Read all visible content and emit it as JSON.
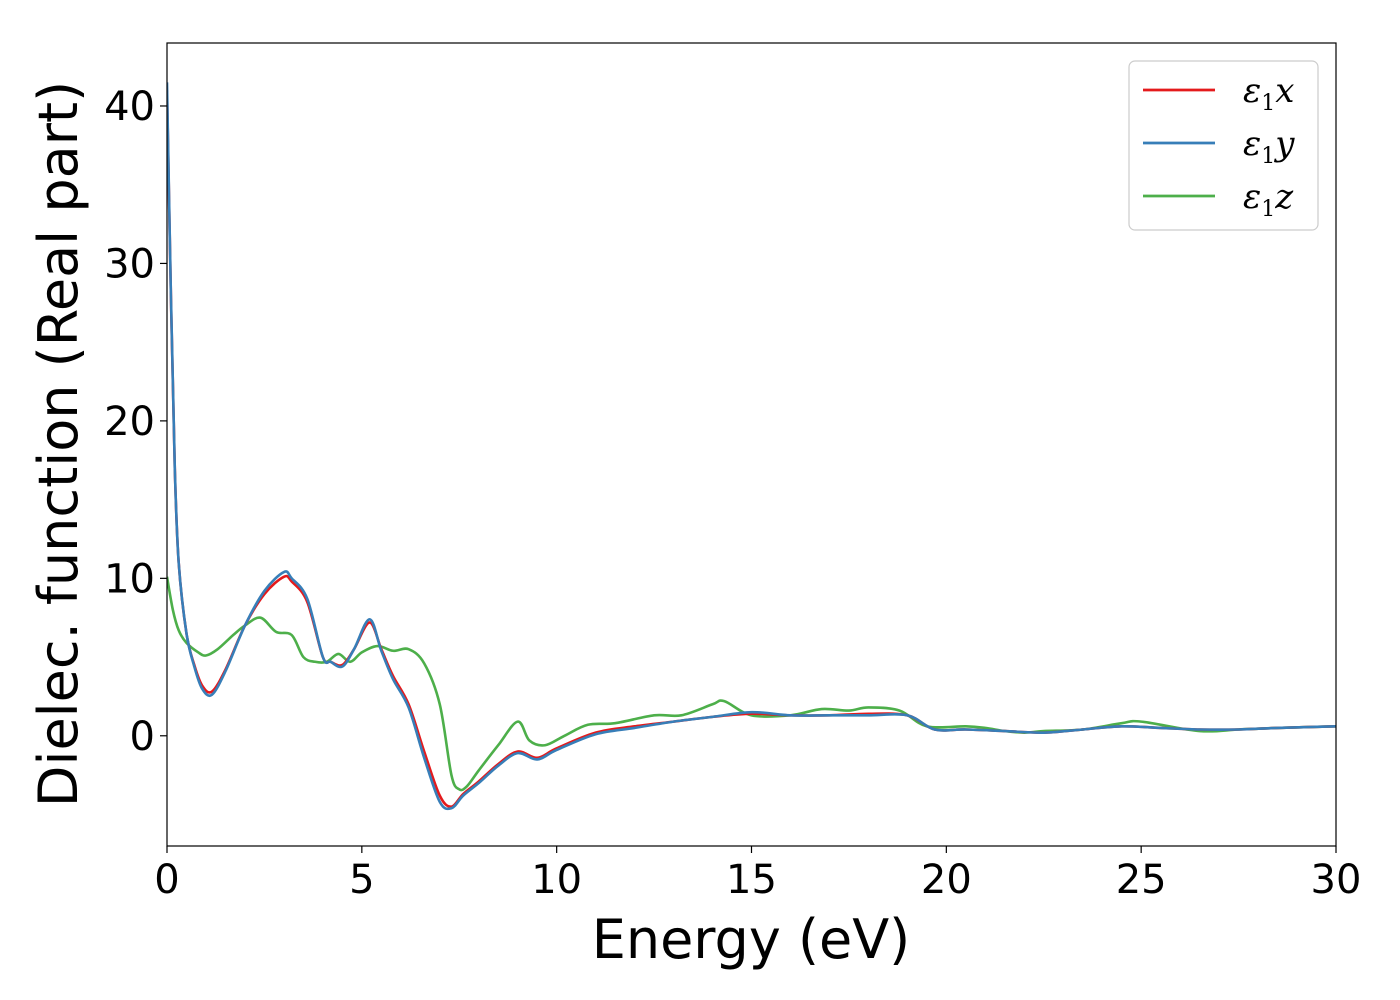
{
  "chart_data": {
    "type": "line",
    "title": "",
    "xlabel": "Energy (eV)",
    "ylabel": "Dielec. function (Real part)",
    "xlim": [
      0,
      30
    ],
    "ylim": [
      -7,
      44
    ],
    "xticks": [
      0,
      5,
      10,
      15,
      20,
      25,
      30
    ],
    "yticks": [
      0,
      10,
      20,
      30,
      40
    ],
    "grid": false,
    "legend_position": "top-right",
    "series": [
      {
        "name": "ε1x",
        "name_base": "ε",
        "name_sub": "1",
        "name_suffix": "x",
        "color": "#e41a1c",
        "x": [
          0,
          0.1,
          0.2,
          0.3,
          0.5,
          0.7,
          0.9,
          1.15,
          1.5,
          2.0,
          2.5,
          3.0,
          3.2,
          3.6,
          4.0,
          4.2,
          4.5,
          4.8,
          5.2,
          5.5,
          5.8,
          6.2,
          6.6,
          7.0,
          7.3,
          7.6,
          8.0,
          8.5,
          9.0,
          9.5,
          10.0,
          11.0,
          12.0,
          13.0,
          14.0,
          15.0,
          16.0,
          17.0,
          18.0,
          19.0,
          19.7,
          20.5,
          21.5,
          22.5,
          23.5,
          24.5,
          25.5,
          26.5,
          27.5,
          28.5,
          30.0
        ],
        "y": [
          41,
          28,
          17,
          11,
          6.5,
          4.5,
          3.2,
          2.8,
          4.2,
          7.0,
          9.0,
          10.1,
          9.8,
          8.5,
          5.0,
          4.7,
          4.5,
          5.5,
          7.2,
          5.5,
          3.8,
          2.0,
          -1.0,
          -3.8,
          -4.5,
          -3.7,
          -2.9,
          -1.8,
          -1.0,
          -1.4,
          -0.8,
          0.2,
          0.6,
          0.9,
          1.2,
          1.4,
          1.3,
          1.3,
          1.4,
          1.3,
          0.4,
          0.4,
          0.3,
          0.2,
          0.4,
          0.6,
          0.5,
          0.4,
          0.4,
          0.5,
          0.6
        ]
      },
      {
        "name": "ε1y",
        "name_base": "ε",
        "name_sub": "1",
        "name_suffix": "y",
        "color": "#377eb8",
        "x": [
          0,
          0.1,
          0.2,
          0.3,
          0.5,
          0.7,
          0.9,
          1.15,
          1.5,
          2.0,
          2.5,
          3.0,
          3.2,
          3.6,
          4.0,
          4.2,
          4.5,
          4.8,
          5.2,
          5.5,
          5.8,
          6.2,
          6.6,
          7.0,
          7.3,
          7.6,
          8.0,
          8.5,
          9.0,
          9.5,
          10.0,
          11.0,
          12.0,
          13.0,
          14.0,
          15.0,
          16.0,
          17.0,
          18.0,
          19.0,
          19.7,
          20.5,
          21.5,
          22.5,
          23.5,
          24.5,
          25.5,
          26.5,
          27.5,
          28.5,
          30.0
        ],
        "y": [
          41.5,
          28,
          17,
          11,
          6.5,
          4.4,
          3.0,
          2.6,
          4.1,
          7.0,
          9.2,
          10.4,
          10.0,
          8.7,
          5.0,
          4.7,
          4.4,
          5.5,
          7.4,
          5.4,
          3.6,
          1.8,
          -1.4,
          -4.2,
          -4.6,
          -3.8,
          -3.0,
          -1.9,
          -1.1,
          -1.5,
          -0.9,
          0.1,
          0.5,
          0.9,
          1.2,
          1.5,
          1.3,
          1.3,
          1.3,
          1.3,
          0.4,
          0.4,
          0.3,
          0.2,
          0.4,
          0.6,
          0.5,
          0.4,
          0.4,
          0.5,
          0.6
        ]
      },
      {
        "name": "ε1z",
        "name_base": "ε",
        "name_sub": "1",
        "name_suffix": "z",
        "color": "#4daf4a",
        "x": [
          0,
          0.15,
          0.3,
          0.5,
          0.8,
          1.0,
          1.3,
          1.7,
          2.0,
          2.4,
          2.8,
          3.2,
          3.5,
          3.8,
          4.1,
          4.4,
          4.7,
          5.0,
          5.4,
          5.8,
          6.2,
          6.6,
          7.0,
          7.3,
          7.5,
          7.7,
          8.0,
          8.5,
          9.0,
          9.3,
          9.7,
          10.2,
          10.8,
          11.5,
          12.5,
          13.2,
          14.0,
          14.3,
          15.0,
          16.0,
          16.8,
          17.5,
          18.0,
          18.8,
          19.5,
          20.5,
          21.0,
          21.5,
          22.0,
          22.5,
          23.5,
          24.5,
          25.0,
          26.5,
          27.5,
          28.5,
          30.0
        ],
        "y": [
          10.1,
          8.0,
          6.7,
          5.9,
          5.3,
          5.1,
          5.5,
          6.4,
          7.0,
          7.5,
          6.6,
          6.4,
          5.0,
          4.7,
          4.7,
          5.2,
          4.7,
          5.3,
          5.7,
          5.4,
          5.5,
          4.6,
          2.0,
          -2.5,
          -3.4,
          -3.2,
          -2.2,
          -0.6,
          0.9,
          -0.3,
          -0.6,
          0.0,
          0.7,
          0.8,
          1.3,
          1.3,
          2.0,
          2.2,
          1.3,
          1.3,
          1.7,
          1.6,
          1.8,
          1.6,
          0.6,
          0.6,
          0.5,
          0.3,
          0.2,
          0.3,
          0.4,
          0.8,
          0.9,
          0.3,
          0.4,
          0.5,
          0.6
        ]
      }
    ]
  }
}
